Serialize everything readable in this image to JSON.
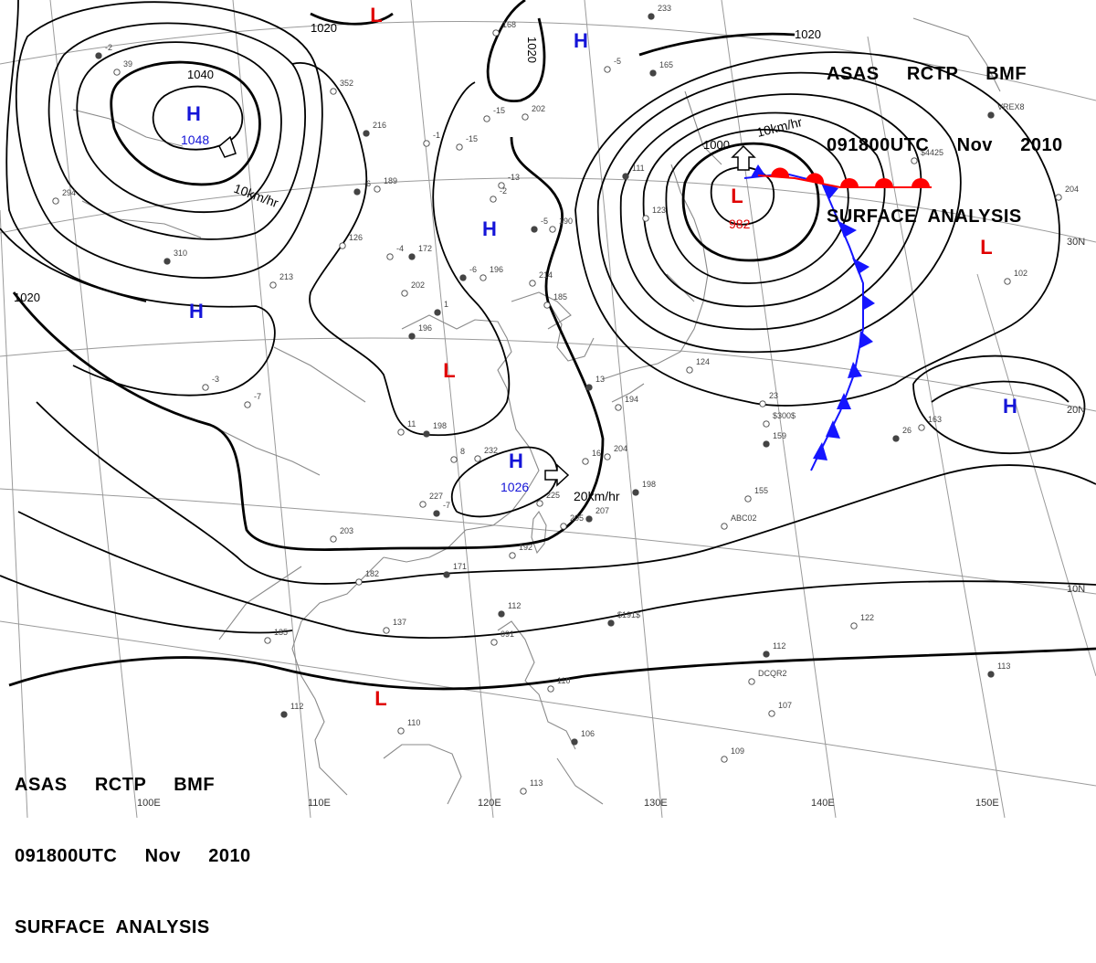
{
  "header": {
    "line1": "ASAS     RCTP     BMF",
    "line2": "091800UTC     Nov     2010",
    "line3": "SURFACE  ANALYSIS"
  },
  "colors": {
    "high": "#1515d8",
    "low": "#e00000",
    "isobar": "#000000",
    "coast": "#8a8a8a",
    "grid": "#9a9a9a",
    "cold_front": "#1515ff",
    "warm_front": "#ff0000"
  },
  "pressure_systems": [
    {
      "id": "h1",
      "type": "H",
      "value": "1048"
    },
    {
      "id": "h2",
      "type": "H",
      "value": ""
    },
    {
      "id": "h3",
      "type": "H",
      "value": ""
    },
    {
      "id": "h4",
      "type": "H",
      "value": ""
    },
    {
      "id": "h5",
      "type": "H",
      "value": "1026"
    },
    {
      "id": "h6",
      "type": "H",
      "value": ""
    },
    {
      "id": "l1",
      "type": "L",
      "value": ""
    },
    {
      "id": "l2",
      "type": "L",
      "value": "982"
    },
    {
      "id": "l3",
      "type": "L",
      "value": ""
    },
    {
      "id": "l4",
      "type": "L",
      "value": ""
    },
    {
      "id": "l5",
      "type": "L",
      "value": ""
    }
  ],
  "isobar_labels": [
    "1040",
    "1020",
    "1020",
    "1020",
    "1020",
    "1000"
  ],
  "motion_labels": [
    "10km/hr",
    "10km/hr",
    "20km/hr"
  ],
  "axis_labels": {
    "lon": [
      "100E",
      "110E",
      "120E",
      "130E",
      "140E",
      "150E"
    ],
    "lat": [
      "30N",
      "20N",
      "10N"
    ]
  },
  "stations": [
    "-2",
    "39",
    "352",
    "216",
    "-15",
    "202",
    "-6",
    "189",
    "-4",
    "172",
    "126",
    "202",
    "196",
    "-13",
    "-2",
    "-5",
    "190",
    "214",
    "-6",
    "196",
    "185",
    "310",
    "213",
    "294",
    "1",
    "232",
    "227",
    "-7",
    "8",
    "11",
    "198",
    "203",
    "182",
    "171",
    "137",
    "135",
    "112",
    "110",
    "113",
    "106",
    "110",
    "091",
    "112",
    "204",
    "225",
    "207",
    "192",
    "205",
    "198",
    "194",
    "124",
    "159",
    "155",
    "23",
    "26",
    "163",
    "122",
    "112",
    "107",
    "109",
    "113",
    "102",
    "204",
    "111",
    "123",
    "-5",
    "165",
    "-15",
    "-1",
    "13",
    "16",
    "$300$",
    "$191$",
    "ABC02",
    "DCQR2",
    "VREX8",
    "$4425",
    "168",
    "233",
    "-3",
    "-7"
  ]
}
